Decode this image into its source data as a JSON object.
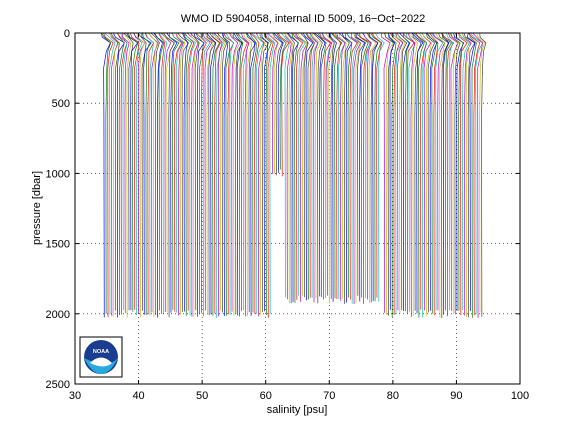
{
  "chart_data": {
    "type": "line",
    "title": "WMO ID 5904058, internal ID 5009, 16−Oct−2022",
    "xlabel": "salinity [psu]",
    "ylabel": "pressure [dbar]",
    "xlim": [
      30,
      100
    ],
    "ylim": [
      2500,
      0
    ],
    "y_reversed": true,
    "xticks": [
      30,
      40,
      50,
      60,
      70,
      80,
      90,
      100
    ],
    "yticks": [
      0,
      500,
      1000,
      1500,
      2000,
      2500
    ],
    "grid": "dotted",
    "logo": "NOAA",
    "series_colors": [
      "#0000ff",
      "#008000",
      "#ff0000",
      "#00bfbf",
      "#bf00bf",
      "#bfbf00",
      "#404040"
    ],
    "profile_offset_step": 0.3,
    "profiles": [
      {
        "start_salinity": 34.5,
        "count": 88,
        "max_pressure": 2000
      },
      {
        "start_salinity": 61.0,
        "count": 6,
        "max_pressure": 1000
      },
      {
        "start_salinity": 63.0,
        "count": 50,
        "max_pressure": 1900
      },
      {
        "start_salinity": 78.6,
        "count": 52,
        "max_pressure": 2000
      }
    ]
  }
}
